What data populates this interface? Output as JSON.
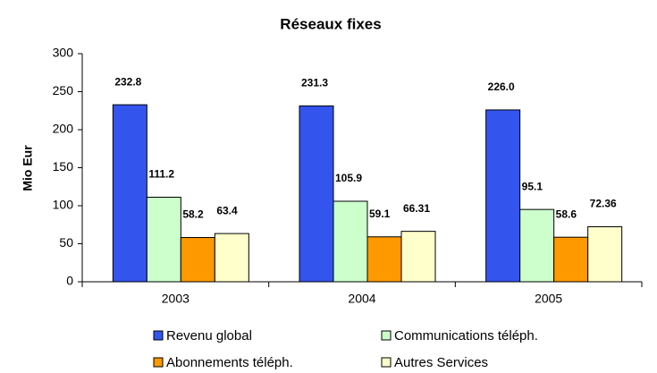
{
  "chart_data": {
    "type": "bar",
    "title": "Réseaux fixes",
    "y_label": "Mio Eur",
    "categories": [
      "2003",
      "2004",
      "2005"
    ],
    "series": [
      {
        "name": "Revenu global",
        "color": "#3355ee",
        "values": [
          232.8,
          231.3,
          226.0
        ],
        "value_labels": [
          "232.8",
          "231.3",
          "226.0"
        ]
      },
      {
        "name": "Communications téléph.",
        "color": "#ccffcc",
        "values": [
          111.2,
          105.9,
          95.1
        ]
      },
      {
        "name": "Abonnements téléph.",
        "color": "#ff9900",
        "values": [
          58.2,
          59.1,
          58.6
        ]
      },
      {
        "name": "Autres Services",
        "color": "#ffffcc",
        "values": [
          63.4,
          66.31,
          72.36
        ]
      }
    ],
    "ylim": [
      0,
      300
    ],
    "yticks": [
      0,
      50,
      100,
      150,
      200,
      250,
      300
    ],
    "grid": false
  }
}
